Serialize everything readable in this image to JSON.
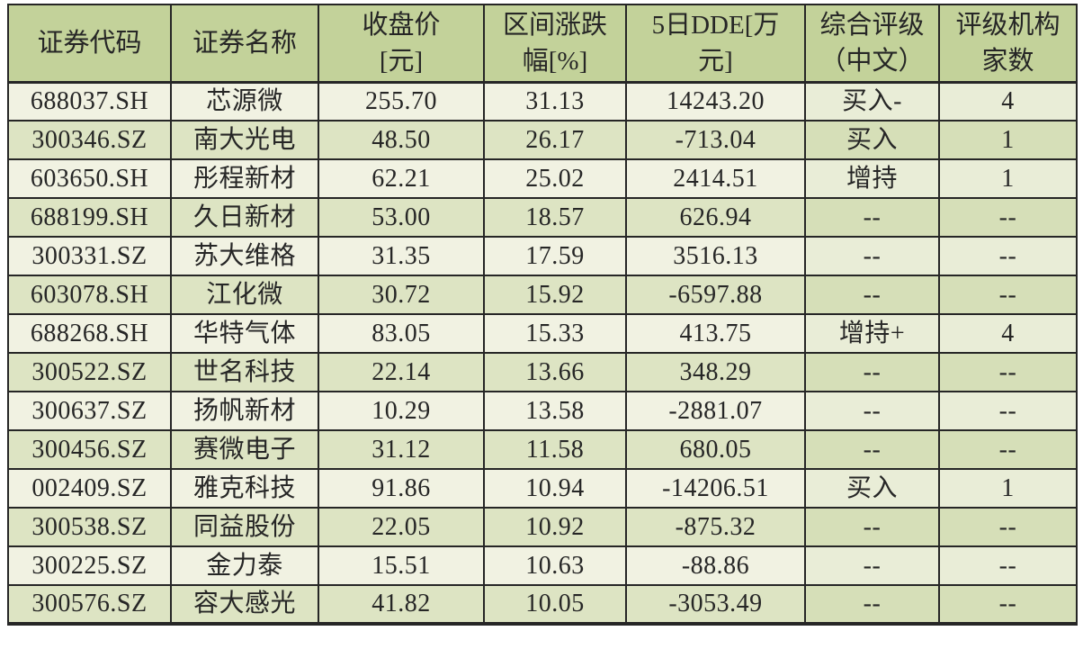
{
  "page": {
    "background": "#ffffff"
  },
  "colors": {
    "header_bg": "#c3d29a",
    "row_light": "#f1f2e2",
    "row_light_accent": "#e9edd7",
    "row_green": "#dde4c3",
    "row_green_accent": "#d6dfb8",
    "border": "#262626",
    "text": "#262626"
  },
  "chart_data": {
    "type": "table",
    "title": "",
    "column_keys": [
      "code",
      "name",
      "close-price",
      "range-change-pct",
      "dde-5d",
      "rating",
      "rating-agency-count"
    ],
    "columns": [
      {
        "label": "证券代码",
        "display": "证券代码"
      },
      {
        "label": "证券名称",
        "display": "证券名称"
      },
      {
        "label": "收盘价[元]",
        "display": "收盘价\n[元]"
      },
      {
        "label": "区间涨跌幅[%]",
        "display": "区间涨跌\n幅[%]"
      },
      {
        "label": "5日DDE[万元]",
        "display": "5日DDE[万\n元]"
      },
      {
        "label": "综合评级（中文）",
        "display": "综合评级\n（中文）"
      },
      {
        "label": "评级机构家数",
        "display": "评级机构\n家数"
      }
    ],
    "rows": [
      [
        "688037.SH",
        "芯源微",
        "255.70",
        "31.13",
        "14243.20",
        "买入-",
        "4"
      ],
      [
        "300346.SZ",
        "南大光电",
        "48.50",
        "26.17",
        "-713.04",
        "买入",
        "1"
      ],
      [
        "603650.SH",
        "彤程新材",
        "62.21",
        "25.02",
        "2414.51",
        "增持",
        "1"
      ],
      [
        "688199.SH",
        "久日新材",
        "53.00",
        "18.57",
        "626.94",
        "--",
        "--"
      ],
      [
        "300331.SZ",
        "苏大维格",
        "31.35",
        "17.59",
        "3516.13",
        "--",
        "--"
      ],
      [
        "603078.SH",
        "江化微",
        "30.72",
        "15.92",
        "-6597.88",
        "--",
        "--"
      ],
      [
        "688268.SH",
        "华特气体",
        "83.05",
        "15.33",
        "413.75",
        "增持+",
        "4"
      ],
      [
        "300522.SZ",
        "世名科技",
        "22.14",
        "13.66",
        "348.29",
        "--",
        "--"
      ],
      [
        "300637.SZ",
        "扬帆新材",
        "10.29",
        "13.58",
        "-2881.07",
        "--",
        "--"
      ],
      [
        "300456.SZ",
        "赛微电子",
        "31.12",
        "11.58",
        "680.05",
        "--",
        "--"
      ],
      [
        "002409.SZ",
        "雅克科技",
        "91.86",
        "10.94",
        "-14206.51",
        "买入",
        "1"
      ],
      [
        "300538.SZ",
        "同益股份",
        "22.05",
        "10.92",
        "-875.32",
        "--",
        "--"
      ],
      [
        "300225.SZ",
        "金力泰",
        "15.51",
        "10.63",
        "-88.86",
        "--",
        "--"
      ],
      [
        "300576.SZ",
        "容大感光",
        "41.82",
        "10.05",
        "-3053.49",
        "--",
        "--"
      ]
    ]
  }
}
